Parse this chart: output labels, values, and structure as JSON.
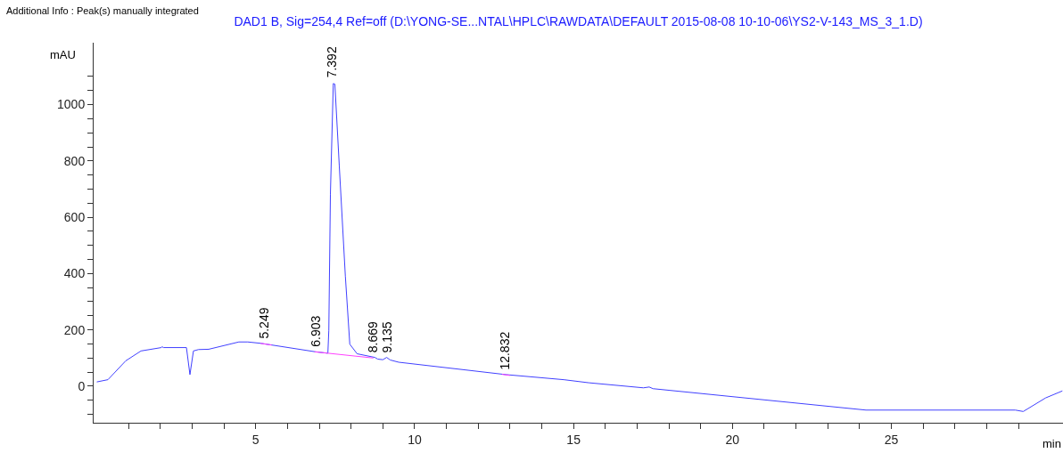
{
  "chart_data": {
    "type": "line",
    "title": "DAD1 B, Sig=254,4 Ref=off (D:\\YONG-SE...NTAL\\HPLC\\RAWDATA\\DEFAULT 2015-08-08 10-10-06\\YS2-V-143_MS_3_1.D)",
    "xlabel": "min",
    "ylabel": "mAU",
    "annotations": [
      "Additional Info : Peak(s) manually integrated",
      {
        "text": "5.249",
        "x": 5.249,
        "y": 150
      },
      {
        "text": "6.903",
        "x": 6.903,
        "y": 121
      },
      {
        "text": "7.392",
        "x": 7.392,
        "y": 1075
      },
      {
        "text": "8.669",
        "x": 8.669,
        "y": 100
      },
      {
        "text": "9.135",
        "x": 9.135,
        "y": 98
      },
      {
        "text": "12.832",
        "x": 12.832,
        "y": 40
      }
    ],
    "xlim": [
      -0.1,
      30.4
    ],
    "ylim": [
      -130,
      1220
    ],
    "xticks": [
      {
        "value": 1,
        "label": null
      },
      {
        "value": 2,
        "label": null
      },
      {
        "value": 3,
        "label": null
      },
      {
        "value": 4,
        "label": null
      },
      5,
      {
        "value": 6,
        "label": null
      },
      {
        "value": 7,
        "label": null
      },
      {
        "value": 8,
        "label": null
      },
      {
        "value": 9,
        "label": null
      },
      10,
      {
        "value": 11,
        "label": null
      },
      {
        "value": 12,
        "label": null
      },
      {
        "value": 13,
        "label": null
      },
      {
        "value": 14,
        "label": null
      },
      15,
      {
        "value": 16,
        "label": null
      },
      {
        "value": 17,
        "label": null
      },
      {
        "value": 18,
        "label": null
      },
      {
        "value": 19,
        "label": null
      },
      20,
      {
        "value": 21,
        "label": null
      },
      {
        "value": 22,
        "label": null
      },
      {
        "value": 23,
        "label": null
      },
      {
        "value": 24,
        "label": null
      },
      25,
      {
        "value": 26,
        "label": null
      },
      {
        "value": 27,
        "label": null
      },
      {
        "value": 28,
        "label": null
      },
      {
        "value": 29,
        "label": null
      }
    ],
    "yticks": [
      {
        "value": -100,
        "label": null
      },
      {
        "value": -50,
        "label": null
      },
      0,
      {
        "value": 50,
        "label": null
      },
      {
        "value": 100,
        "label": null
      },
      {
        "value": 150,
        "label": null
      },
      200,
      {
        "value": 250,
        "label": null
      },
      {
        "value": 300,
        "label": null
      },
      {
        "value": 350,
        "label": null
      },
      400,
      {
        "value": 450,
        "label": null
      },
      {
        "value": 500,
        "label": null
      },
      {
        "value": 550,
        "label": null
      },
      600,
      {
        "value": 650,
        "label": null
      },
      {
        "value": 700,
        "label": null
      },
      {
        "value": 750,
        "label": null
      },
      800,
      {
        "value": 850,
        "label": null
      },
      {
        "value": 900,
        "label": null
      },
      {
        "value": 950,
        "label": null
      },
      1000,
      {
        "value": 1050,
        "label": null
      },
      {
        "value": 1100,
        "label": null
      }
    ],
    "grid": false,
    "marker": "none",
    "line_style": "solid",
    "series": [
      {
        "color": "#4040ff",
        "x": [
          0,
          0.35,
          0.91,
          1.39,
          2.03,
          2.05,
          2.1,
          2.82,
          2.93,
          3.04,
          3.2,
          3.52,
          4.47,
          4.75,
          5.17,
          6.88,
          7.27,
          7.3,
          7.35,
          7.44,
          7.49,
          7.63,
          7.82,
          7.96,
          8.19,
          8.75,
          8.84,
          9.0,
          9.12,
          9.23,
          9.5,
          12.87,
          14.69,
          15.48,
          17.2,
          17.38,
          17.5,
          24.2,
          28.9,
          29.15,
          29.85,
          30.38
        ],
        "values": [
          15,
          23,
          90,
          125,
          137,
          140,
          137,
          137,
          41,
          125,
          130,
          131,
          157,
          157,
          152,
          122,
          117,
          198,
          682,
          1075,
          1073,
          781,
          391,
          149,
          115,
          102,
          96,
          94,
          102,
          93,
          85,
          41,
          23,
          12,
          -6,
          -3,
          -9,
          -85,
          -85,
          -90,
          -42,
          -17
        ]
      },
      {
        "color": "#ff40ff",
        "x": [
          5.15,
          5.5,
          null,
          6.85,
          8.7,
          null,
          12.75,
          13.0
        ],
        "values": [
          152,
          146,
          null,
          122,
          100,
          null,
          42,
          38
        ]
      }
    ]
  }
}
